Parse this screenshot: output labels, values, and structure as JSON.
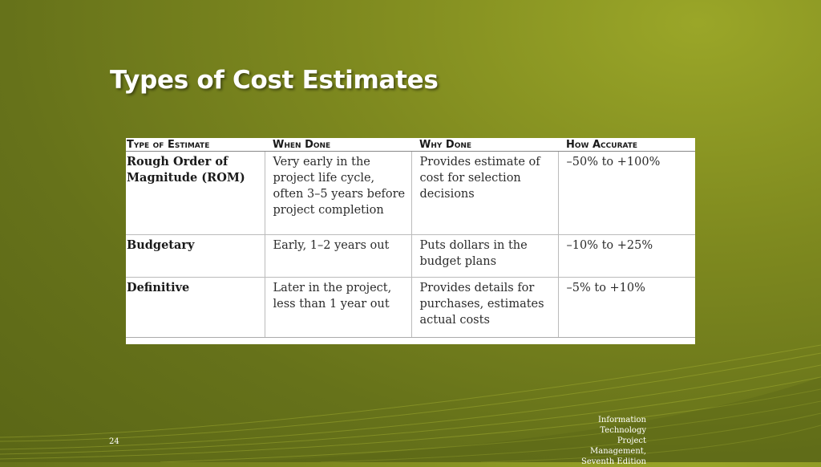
{
  "slide": {
    "title": "Types of Cost Estimates",
    "number": "24",
    "footer": [
      "Information",
      "Technology",
      "Project",
      "Management,",
      "Seventh Edition"
    ]
  },
  "table": {
    "headers": [
      "Type of Estimate",
      "When Done",
      "Why Done",
      "How Accurate"
    ],
    "rows": [
      [
        "Rough Order of Magnitude (ROM)",
        "Very early in the project life cycle, often 3–5 years before project completion",
        "Provides estimate of cost for selection decisions",
        "–50% to +100%"
      ],
      [
        "Budgetary",
        "Early, 1–2 years out",
        "Puts dollars in the budget plans",
        "–10% to +25%"
      ],
      [
        "Definitive",
        "Later in the project, less than 1 year out",
        "Provides details for purchases, estimates actual costs",
        "–5% to +10%"
      ]
    ]
  }
}
